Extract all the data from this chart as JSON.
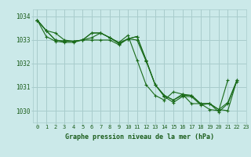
{
  "bg_color": "#cbe9e9",
  "grid_color": "#a8cccc",
  "line_color": "#1a6b1a",
  "marker_color": "#1a6b1a",
  "text_color": "#1a5c1a",
  "xlabel": "Graphe pression niveau de la mer (hPa)",
  "xlim": [
    -0.5,
    23
  ],
  "ylim": [
    1029.5,
    1034.3
  ],
  "yticks": [
    1030,
    1031,
    1032,
    1033,
    1034
  ],
  "xticks": [
    0,
    1,
    2,
    3,
    4,
    5,
    6,
    7,
    8,
    9,
    10,
    11,
    12,
    13,
    14,
    15,
    16,
    17,
    18,
    19,
    20,
    21,
    22,
    23
  ],
  "series": [
    [
      1033.85,
      1033.4,
      1033.0,
      1032.95,
      1032.95,
      1033.0,
      1033.3,
      1033.3,
      1033.1,
      1032.9,
      1033.2,
      1032.15,
      1031.1,
      1030.65,
      1030.45,
      1030.8,
      1030.7,
      1030.3,
      1030.3,
      1030.05,
      1030.0,
      1031.3,
      null,
      null
    ],
    [
      1033.85,
      1033.4,
      1033.3,
      1033.0,
      1032.95,
      1033.0,
      1033.3,
      1033.3,
      1033.1,
      1032.85,
      1033.05,
      1033.15,
      1032.15,
      1031.1,
      1030.65,
      1030.45,
      1030.7,
      1030.65,
      1030.3,
      1030.3,
      1030.05,
      1030.0,
      1031.3,
      null
    ],
    [
      1033.85,
      1033.4,
      1033.0,
      1032.95,
      1032.95,
      1033.0,
      1033.1,
      1033.3,
      1033.1,
      1032.88,
      1033.05,
      1033.15,
      1032.15,
      1031.1,
      1030.65,
      1030.45,
      1030.65,
      1030.65,
      1030.3,
      1030.3,
      1030.05,
      1030.35,
      1031.3,
      null
    ],
    [
      1033.85,
      1033.15,
      1032.95,
      1032.9,
      1032.9,
      1033.0,
      1033.0,
      1033.0,
      1033.0,
      1032.8,
      1033.05,
      1033.0,
      1032.1,
      1031.1,
      1030.6,
      1030.35,
      1030.6,
      1030.6,
      1030.25,
      1030.3,
      1029.95,
      1030.3,
      1031.25,
      null
    ]
  ]
}
